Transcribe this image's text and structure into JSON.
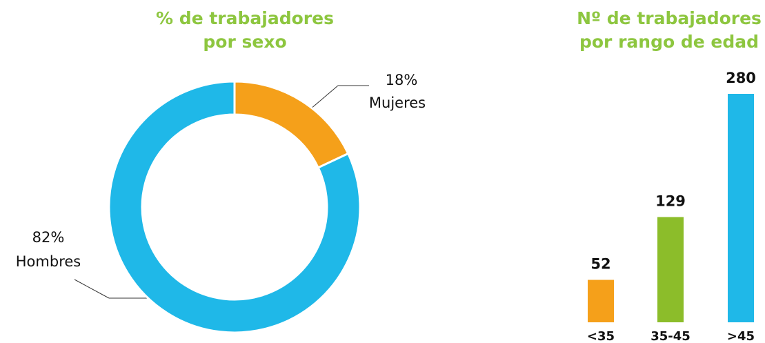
{
  "chart_data": [
    {
      "type": "pie",
      "title": [
        "% de trabajadores",
        "por sexo"
      ],
      "categories": [
        "Mujeres",
        "Hombres"
      ],
      "values": [
        18,
        82
      ],
      "value_labels": [
        "18%",
        "82%"
      ],
      "colors": [
        "#f5a01a",
        "#1fb8e8"
      ]
    },
    {
      "type": "bar",
      "title": [
        "Nº de trabajadores",
        "por rango de edad"
      ],
      "categories": [
        "<35",
        "35-45",
        ">45"
      ],
      "values": [
        52,
        129,
        280
      ],
      "colors": [
        "#f5a01a",
        "#8cbd2a",
        "#1fb8e8"
      ]
    }
  ]
}
